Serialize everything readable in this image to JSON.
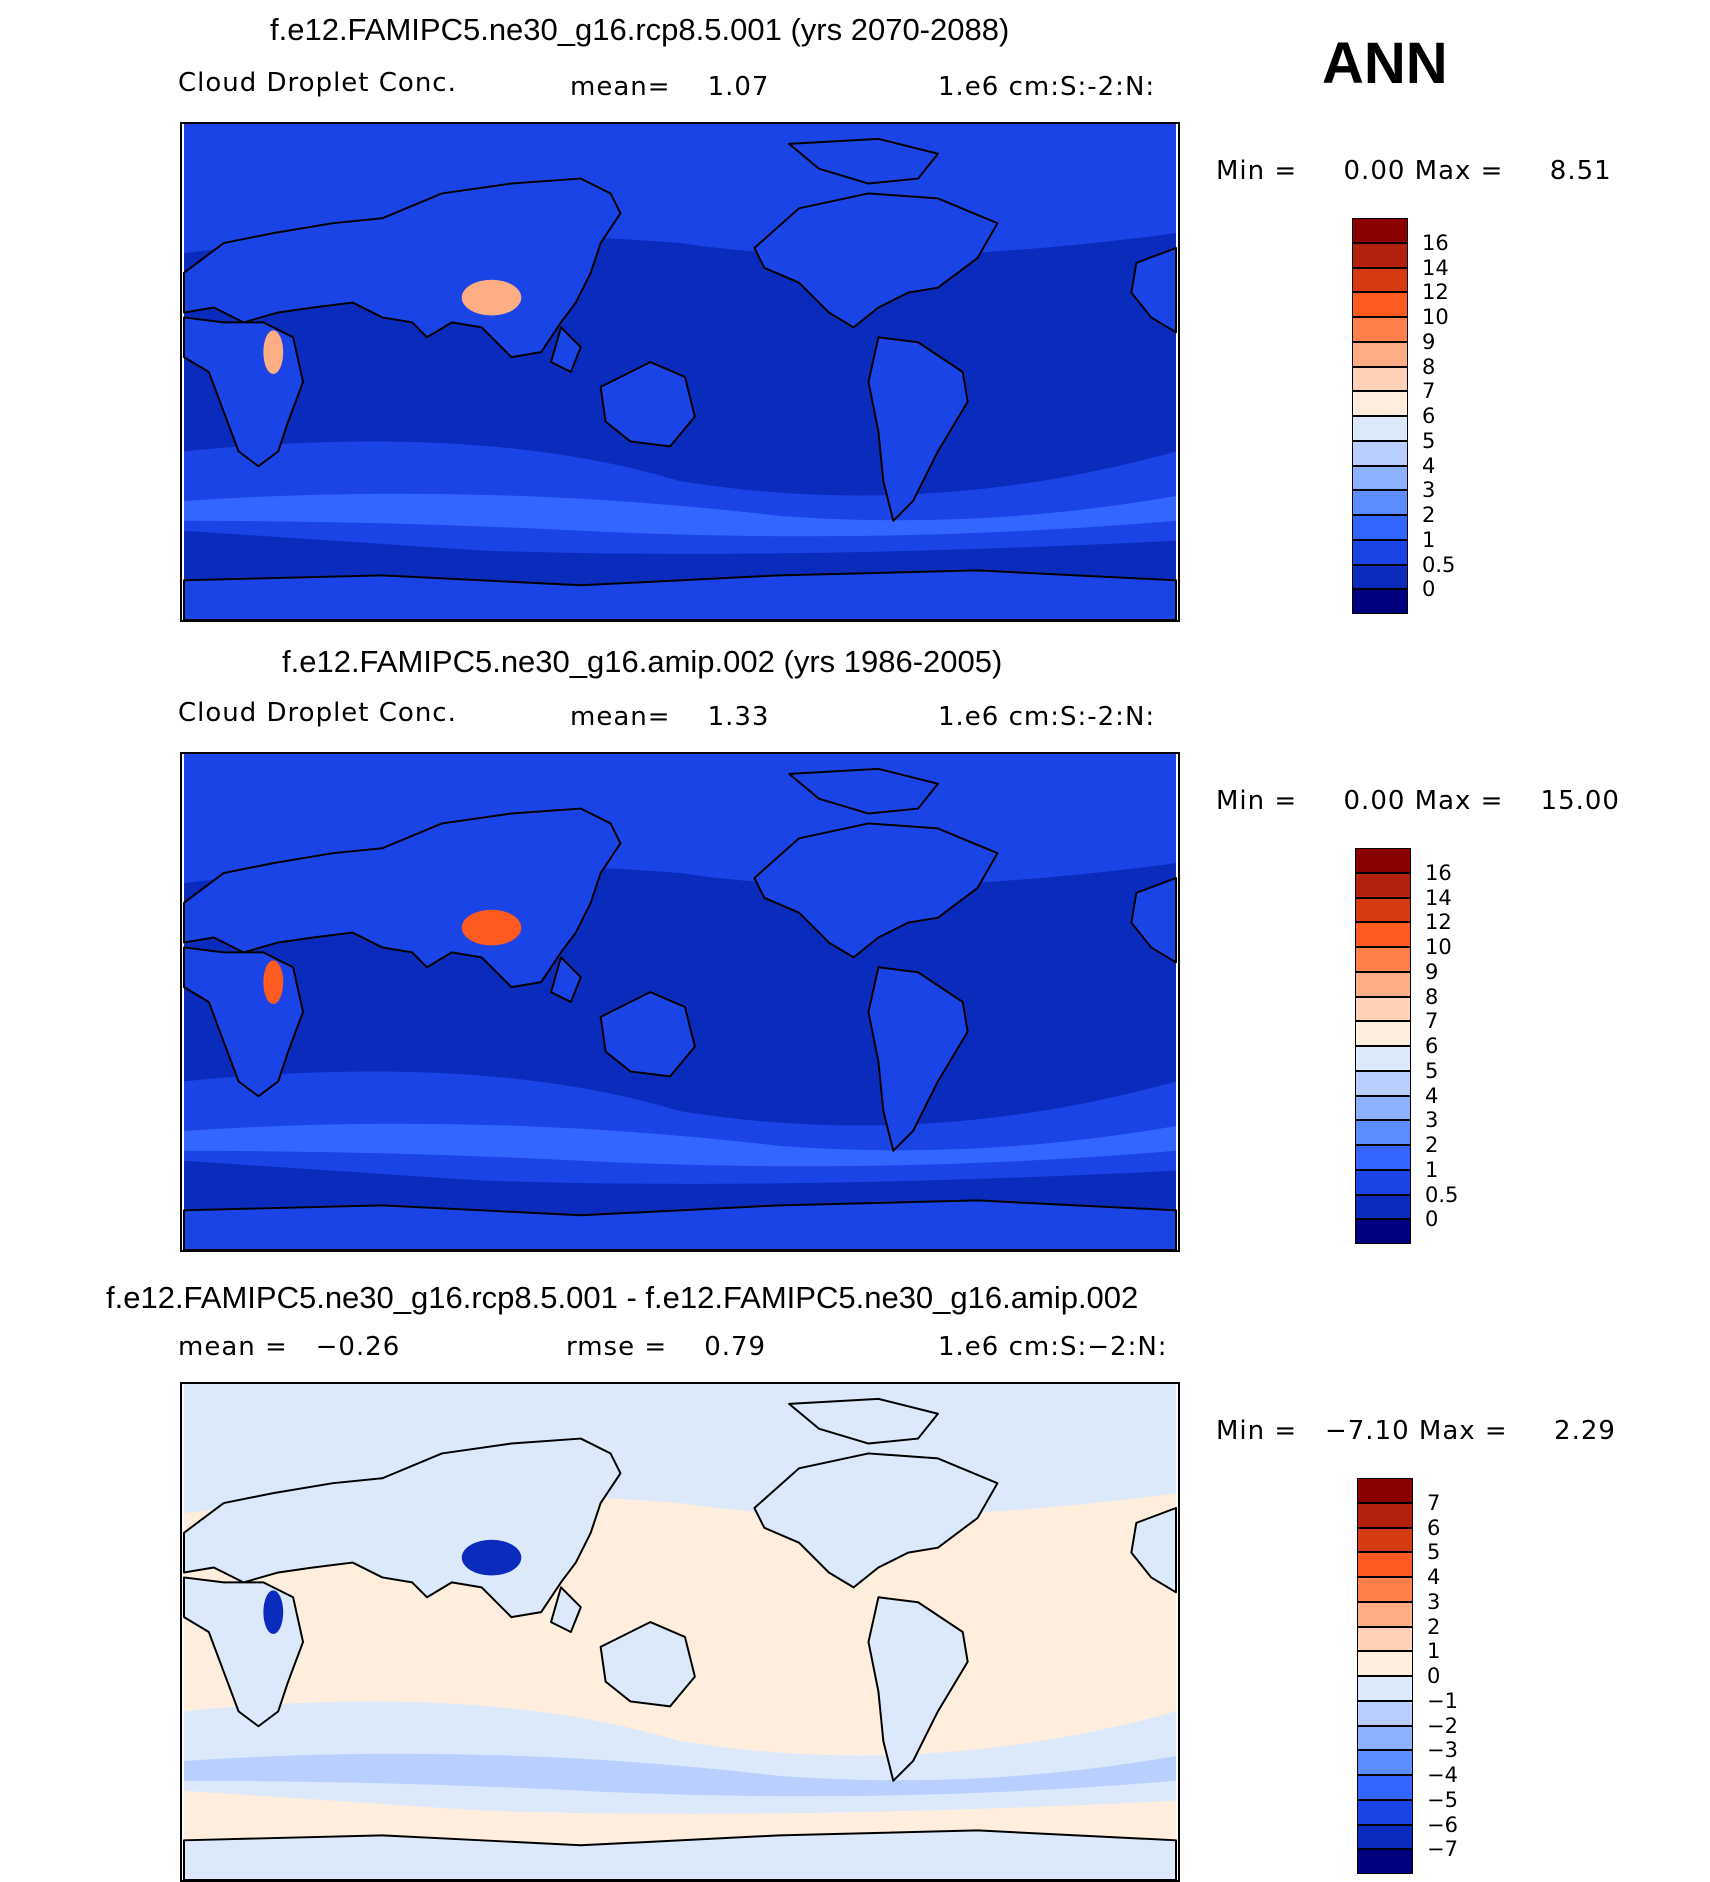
{
  "season": "ANN",
  "panels": [
    {
      "title": "f.e12.FAMIPC5.ne30_g16.rcp8.5.001 (yrs 2070-2088)",
      "variable": "Cloud Droplet Conc.",
      "stat1": "mean=    1.07",
      "units": "1.e6 cm:S:-2:N:",
      "minmax": "Min =     0.00 Max =     8.51",
      "levels": [
        "16",
        "14",
        "12",
        "10",
        "9",
        "8",
        "7",
        "6",
        "5",
        "4",
        "3",
        "2",
        "1",
        "0.5",
        "0"
      ],
      "colors": [
        "#8b0000",
        "#b3200e",
        "#d63a10",
        "#ff5a1f",
        "#ff7f4a",
        "#ffad85",
        "#ffd2b8",
        "#ffeedd",
        "#dce9fa",
        "#b9d0ff",
        "#8cb2ff",
        "#5c8cff",
        "#3366ff",
        "#1a44e6",
        "#0b2bbd",
        "#00007f"
      ],
      "field_colors": {
        "ocean": "#0b2bbd",
        "band": "#1a44e6",
        "band2": "#3366ff",
        "land": "#1a44e6",
        "hot": "#ffad85"
      }
    },
    {
      "title": "f.e12.FAMIPC5.ne30_g16.amip.002 (yrs 1986-2005)",
      "variable": "Cloud Droplet Conc.",
      "stat1": "mean=    1.33",
      "units": "1.e6 cm:S:-2:N:",
      "minmax": "Min =     0.00 Max =    15.00",
      "levels": [
        "16",
        "14",
        "12",
        "10",
        "9",
        "8",
        "7",
        "6",
        "5",
        "4",
        "3",
        "2",
        "1",
        "0.5",
        "0"
      ],
      "colors": [
        "#8b0000",
        "#b3200e",
        "#d63a10",
        "#ff5a1f",
        "#ff7f4a",
        "#ffad85",
        "#ffd2b8",
        "#ffeedd",
        "#dce9fa",
        "#b9d0ff",
        "#8cb2ff",
        "#5c8cff",
        "#3366ff",
        "#1a44e6",
        "#0b2bbd",
        "#00007f"
      ],
      "field_colors": {
        "ocean": "#0b2bbd",
        "band": "#1a44e6",
        "band2": "#3366ff",
        "land": "#1a44e6",
        "hot": "#ff5a1f"
      }
    },
    {
      "title": "f.e12.FAMIPC5.ne30_g16.rcp8.5.001 - f.e12.FAMIPC5.ne30_g16.amip.002",
      "stat1": "mean =   −0.26",
      "stat2": "rmse =    0.79",
      "units": "1.e6 cm:S:−2:N:",
      "minmax": "Min =   −7.10 Max =     2.29",
      "levels": [
        "7",
        "6",
        "5",
        "4",
        "3",
        "2",
        "1",
        "0",
        "−1",
        "−2",
        "−3",
        "−4",
        "−5",
        "−6",
        "−7"
      ],
      "colors": [
        "#8b0000",
        "#b3200e",
        "#d63a10",
        "#ff5a1f",
        "#ff7f4a",
        "#ffad85",
        "#ffd2b8",
        "#ffeedd",
        "#dce9fa",
        "#b9d0ff",
        "#8cb2ff",
        "#5c8cff",
        "#3366ff",
        "#1a44e6",
        "#0b2bbd",
        "#00007f"
      ],
      "field_colors": {
        "ocean": "#ffeedd",
        "band": "#dce9fa",
        "band2": "#b9d0ff",
        "land": "#dce9fa",
        "hot": "#0b2bbd"
      }
    }
  ]
}
